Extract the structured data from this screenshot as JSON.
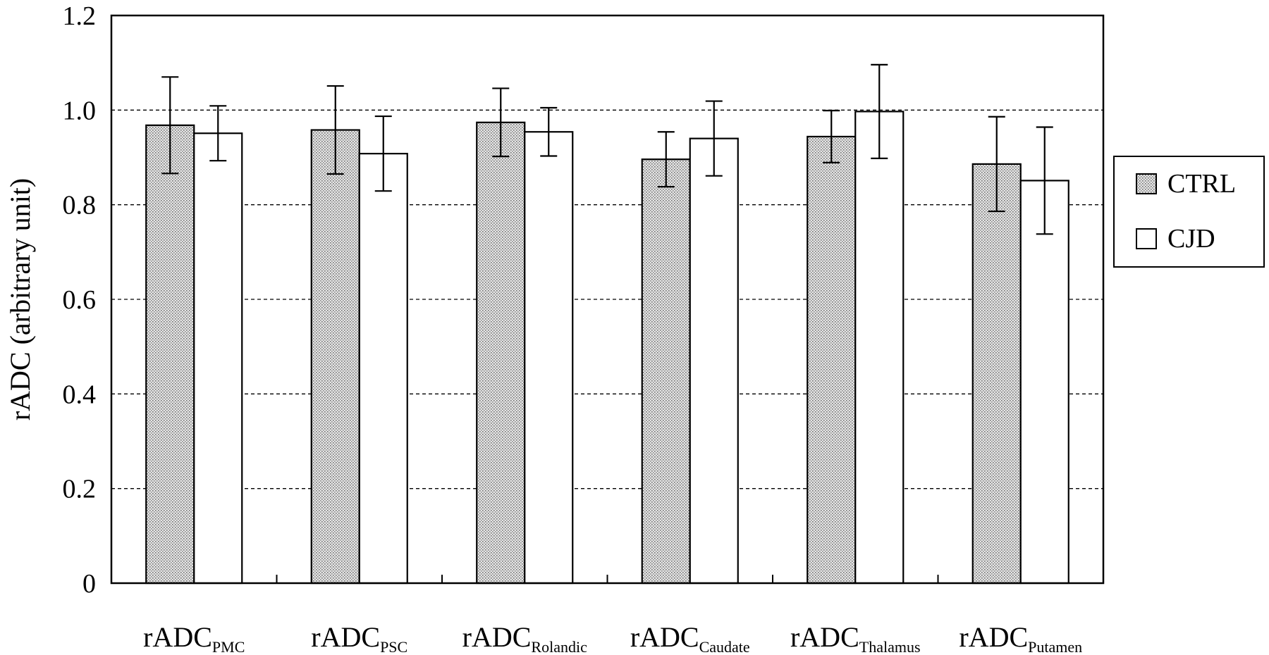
{
  "chart_data": {
    "type": "bar",
    "title": "",
    "xlabel": "",
    "ylabel": "rADC (arbitrary unit)",
    "ylim": [
      0,
      1.2
    ],
    "yticks": [
      "0",
      "0.2",
      "0.4",
      "0.6",
      "0.8",
      "1.0",
      "1.2"
    ],
    "ytick_values": [
      0,
      0.2,
      0.4,
      0.6,
      0.8,
      1.0,
      1.2
    ],
    "grid": "horizontal-dashed",
    "legend_position": "right",
    "categories": [
      {
        "main": "rADC",
        "sub": "PMC"
      },
      {
        "main": "rADC",
        "sub": "PSC"
      },
      {
        "main": "rADC",
        "sub": "Rolandic"
      },
      {
        "main": "rADC",
        "sub": "Caudate"
      },
      {
        "main": "rADC",
        "sub": "Thalamus"
      },
      {
        "main": "rADC",
        "sub": "Putamen"
      }
    ],
    "series": [
      {
        "name": "CTRL",
        "fill": "dotted",
        "values": [
          0.968,
          0.958,
          0.974,
          0.896,
          0.944,
          0.886
        ],
        "errors": [
          0.102,
          0.093,
          0.072,
          0.058,
          0.055,
          0.1
        ]
      },
      {
        "name": "CJD",
        "fill": "white",
        "values": [
          0.951,
          0.908,
          0.954,
          0.94,
          0.997,
          0.851
        ],
        "errors": [
          0.058,
          0.079,
          0.051,
          0.079,
          0.099,
          0.113
        ]
      }
    ]
  }
}
